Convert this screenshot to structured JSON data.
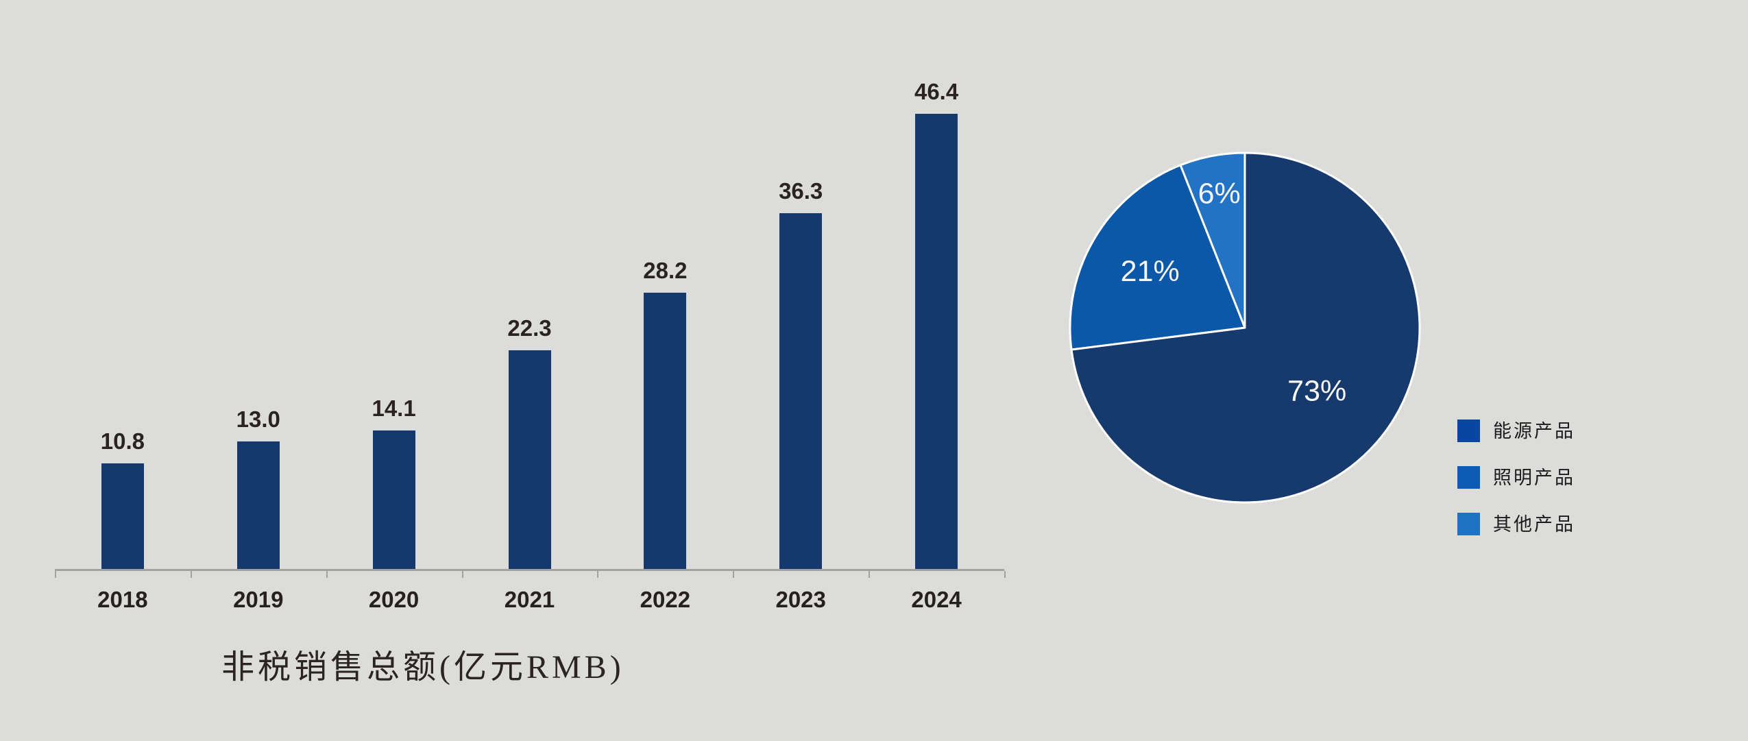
{
  "background_color": "#DCDDDA",
  "chart_data": [
    {
      "type": "bar",
      "title": "非税销售总额(亿元RMB)",
      "categories": [
        "2018",
        "2019",
        "2020",
        "2021",
        "2022",
        "2023",
        "2024"
      ],
      "values": [
        10.8,
        13.0,
        14.1,
        22.3,
        28.2,
        36.3,
        46.4
      ],
      "value_labels": [
        "10.8",
        "13.0",
        "14.1",
        "22.3",
        "28.2",
        "36.3",
        "46.4"
      ],
      "ylim": [
        0,
        50
      ],
      "grid": false,
      "bar_color": "#15396D",
      "value_label_color": "#2A2322",
      "tick_label_color": "#262020",
      "axis_color": "#A2A3A0",
      "legend_position": "none"
    },
    {
      "type": "pie",
      "start_angle_deg": 0,
      "direction": "clockwise",
      "slices": [
        {
          "name": "能源产品",
          "value": 73,
          "label": "73%",
          "color": "#163A6E",
          "label_r": 0.55
        },
        {
          "name": "照明产品",
          "value": 21,
          "label": "21%",
          "color": "#0B57A8",
          "label_r": 0.63
        },
        {
          "name": "其他产品",
          "value": 6,
          "label": "6%",
          "color": "#2273C5",
          "label_r": 0.78
        }
      ],
      "slice_label_color": "#FFFFFF",
      "slice_stroke_color": "#FFFFFF",
      "legend_position": "right",
      "legend": {
        "items": [
          {
            "label": "能源产品",
            "color": "#0946A1"
          },
          {
            "label": "照明产品",
            "color": "#0C5CB3"
          },
          {
            "label": "其他产品",
            "color": "#1E72C4"
          }
        ]
      }
    }
  ]
}
